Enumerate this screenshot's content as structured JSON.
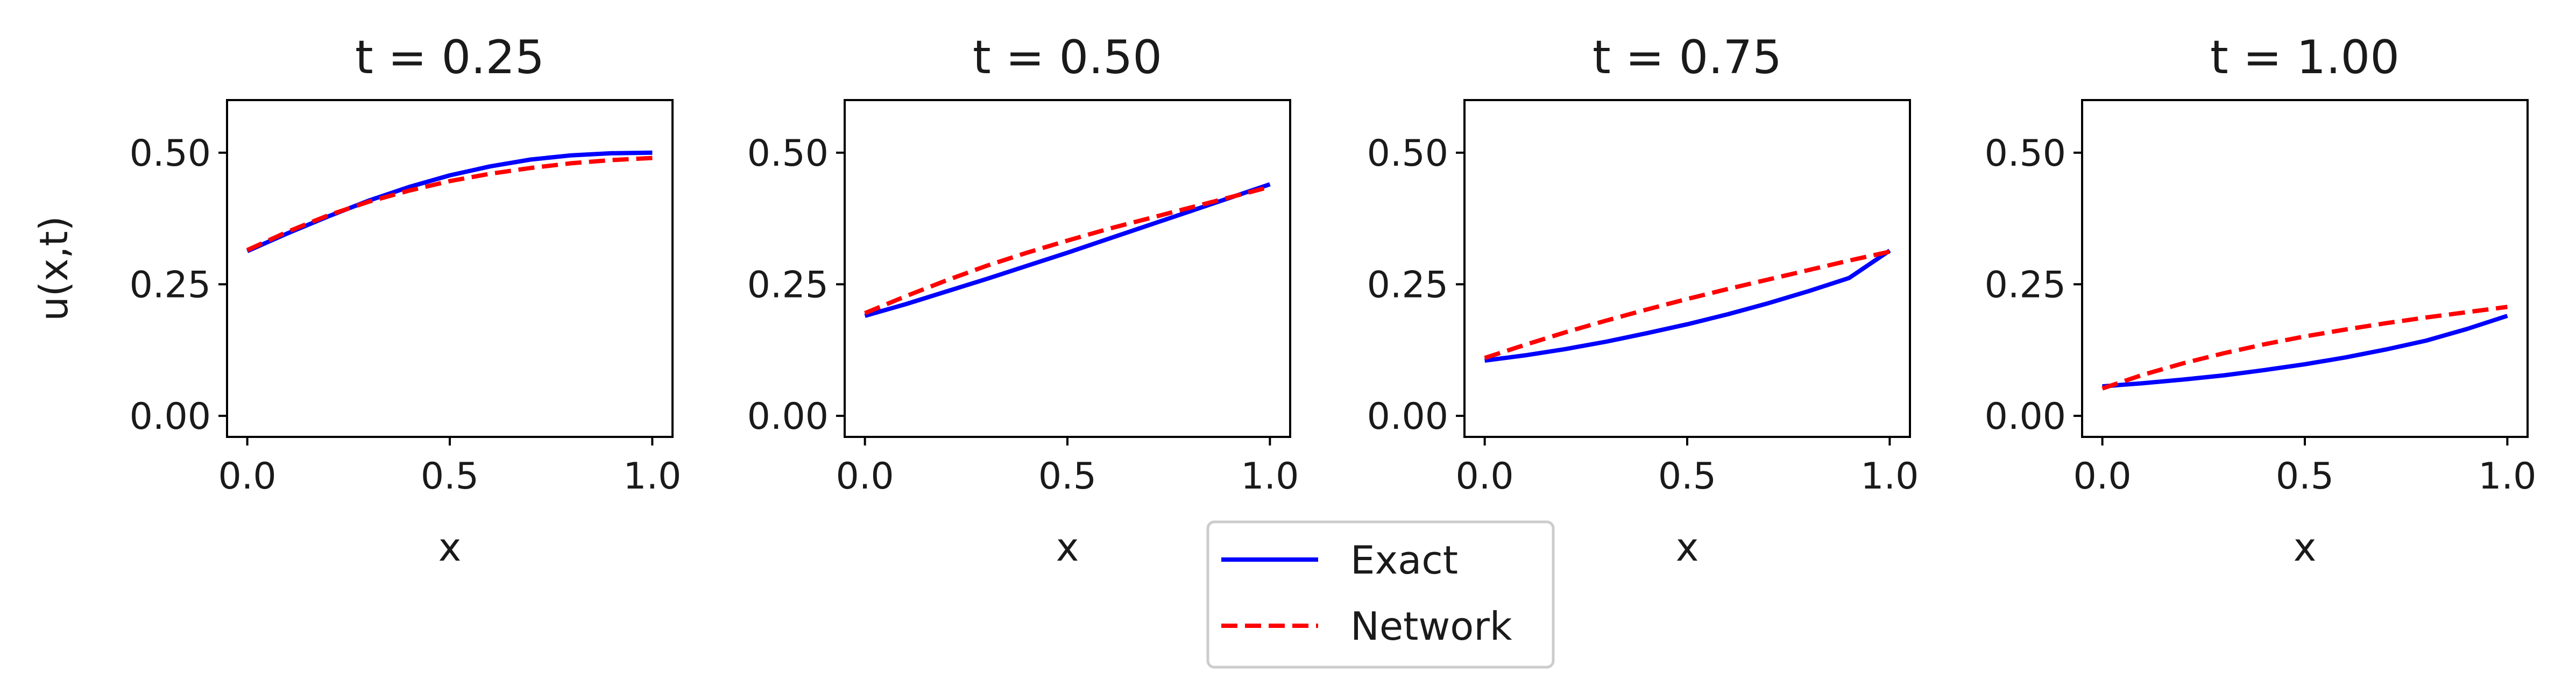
{
  "figure": {
    "legend": {
      "placement": "bottom-center",
      "entries": [
        {
          "label": "Exact",
          "color": "#0000ff",
          "dash": "solid"
        },
        {
          "label": "Network",
          "color": "#ff0000",
          "dash": "dashed"
        }
      ]
    }
  },
  "chart_data": [
    {
      "type": "line",
      "title": "t = 0.25",
      "xlabel": "x",
      "ylabel": "u(x,t)",
      "xlim": [
        -0.05,
        1.05
      ],
      "ylim": [
        -0.04,
        0.6
      ],
      "xticks": [
        "0.0",
        "0.5",
        "1.0"
      ],
      "yticks": [
        "0.00",
        "0.25",
        "0.50"
      ],
      "x": [
        0.0,
        0.1,
        0.2,
        0.3,
        0.4,
        0.5,
        0.6,
        0.7,
        0.8,
        0.9,
        1.0
      ],
      "series": [
        {
          "name": "Exact",
          "color": "#0000ff",
          "dash": "solid",
          "values": [
            0.313,
            0.347,
            0.379,
            0.409,
            0.435,
            0.457,
            0.474,
            0.487,
            0.495,
            0.499,
            0.5
          ]
        },
        {
          "name": "Network",
          "color": "#ff0000",
          "dash": "dashed",
          "values": [
            0.315,
            0.35,
            0.381,
            0.407,
            0.428,
            0.446,
            0.46,
            0.471,
            0.48,
            0.486,
            0.49
          ]
        }
      ]
    },
    {
      "type": "line",
      "title": "t = 0.50",
      "xlabel": "x",
      "ylabel": "",
      "xlim": [
        -0.05,
        1.05
      ],
      "ylim": [
        -0.04,
        0.6
      ],
      "xticks": [
        "0.0",
        "0.5",
        "1.0"
      ],
      "yticks": [
        "0.00",
        "0.25",
        "0.50"
      ],
      "x": [
        0.0,
        0.1,
        0.2,
        0.3,
        0.4,
        0.5,
        0.6,
        0.7,
        0.8,
        0.9,
        1.0
      ],
      "series": [
        {
          "name": "Exact",
          "color": "#0000ff",
          "dash": "solid",
          "values": [
            0.19,
            0.212,
            0.236,
            0.26,
            0.285,
            0.31,
            0.336,
            0.362,
            0.388,
            0.414,
            0.44
          ]
        },
        {
          "name": "Network",
          "color": "#ff0000",
          "dash": "dashed",
          "values": [
            0.195,
            0.227,
            0.257,
            0.285,
            0.31,
            0.333,
            0.355,
            0.375,
            0.395,
            0.415,
            0.435
          ]
        }
      ]
    },
    {
      "type": "line",
      "title": "t = 0.75",
      "xlabel": "x",
      "ylabel": "",
      "xlim": [
        -0.05,
        1.05
      ],
      "ylim": [
        -0.04,
        0.6
      ],
      "xticks": [
        "0.0",
        "0.5",
        "1.0"
      ],
      "yticks": [
        "0.00",
        "0.25",
        "0.50"
      ],
      "x": [
        0.0,
        0.1,
        0.2,
        0.3,
        0.4,
        0.5,
        0.6,
        0.7,
        0.8,
        0.9,
        1.0
      ],
      "series": [
        {
          "name": "Exact",
          "color": "#0000ff",
          "dash": "solid",
          "values": [
            0.105,
            0.115,
            0.127,
            0.141,
            0.157,
            0.174,
            0.193,
            0.214,
            0.237,
            0.262,
            0.314
          ]
        },
        {
          "name": "Network",
          "color": "#ff0000",
          "dash": "dashed",
          "values": [
            0.11,
            0.135,
            0.159,
            0.181,
            0.202,
            0.222,
            0.241,
            0.259,
            0.277,
            0.295,
            0.312
          ]
        }
      ]
    },
    {
      "type": "line",
      "title": "t = 1.00",
      "xlabel": "x",
      "ylabel": "",
      "xlim": [
        -0.05,
        1.05
      ],
      "ylim": [
        -0.04,
        0.6
      ],
      "xticks": [
        "0.0",
        "0.5",
        "1.0"
      ],
      "yticks": [
        "0.00",
        "0.25",
        "0.50"
      ],
      "x": [
        0.0,
        0.1,
        0.2,
        0.3,
        0.4,
        0.5,
        0.6,
        0.7,
        0.8,
        0.9,
        1.0
      ],
      "series": [
        {
          "name": "Exact",
          "color": "#0000ff",
          "dash": "solid",
          "values": [
            0.056,
            0.062,
            0.069,
            0.077,
            0.087,
            0.098,
            0.111,
            0.126,
            0.143,
            0.165,
            0.19
          ]
        },
        {
          "name": "Network",
          "color": "#ff0000",
          "dash": "dashed",
          "values": [
            0.052,
            0.078,
            0.1,
            0.119,
            0.136,
            0.151,
            0.164,
            0.176,
            0.187,
            0.197,
            0.207
          ]
        }
      ]
    }
  ]
}
